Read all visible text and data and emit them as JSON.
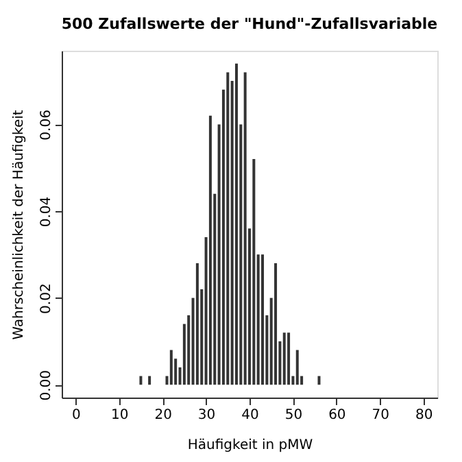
{
  "chart_data": {
    "type": "bar",
    "title": "500 Zufallswerte der \"Hund\"-Zufallsvariable",
    "xlabel": "Häufigkeit in pMW",
    "ylabel": "Wahrscheinlichkeit der Häufigkeit",
    "x": [
      15,
      17,
      21,
      22,
      23,
      24,
      25,
      26,
      27,
      28,
      29,
      30,
      31,
      32,
      33,
      34,
      35,
      36,
      37,
      38,
      39,
      40,
      41,
      42,
      43,
      44,
      45,
      46,
      47,
      48,
      49,
      50,
      51,
      52,
      56
    ],
    "values": [
      0.002,
      0.002,
      0.002,
      0.008,
      0.006,
      0.004,
      0.014,
      0.016,
      0.02,
      0.028,
      0.022,
      0.034,
      0.062,
      0.044,
      0.06,
      0.068,
      0.072,
      0.07,
      0.074,
      0.06,
      0.072,
      0.036,
      0.052,
      0.03,
      0.03,
      0.016,
      0.02,
      0.028,
      0.01,
      0.012,
      0.012,
      0.002,
      0.008,
      0.002,
      0.002
    ],
    "color": "#333333",
    "xlim": [
      -3.2,
      83.2
    ],
    "xticks": [
      0,
      10,
      20,
      30,
      40,
      50,
      60,
      70,
      80
    ],
    "ylim": [
      -0.00296,
      0.07696
    ],
    "yticks": [
      {
        "value": 0,
        "label": "0.00"
      },
      {
        "value": 0.02,
        "label": "0.02"
      },
      {
        "value": 0.04,
        "label": "0.04"
      },
      {
        "value": 0.06,
        "label": "0.06"
      }
    ],
    "grid": false
  }
}
